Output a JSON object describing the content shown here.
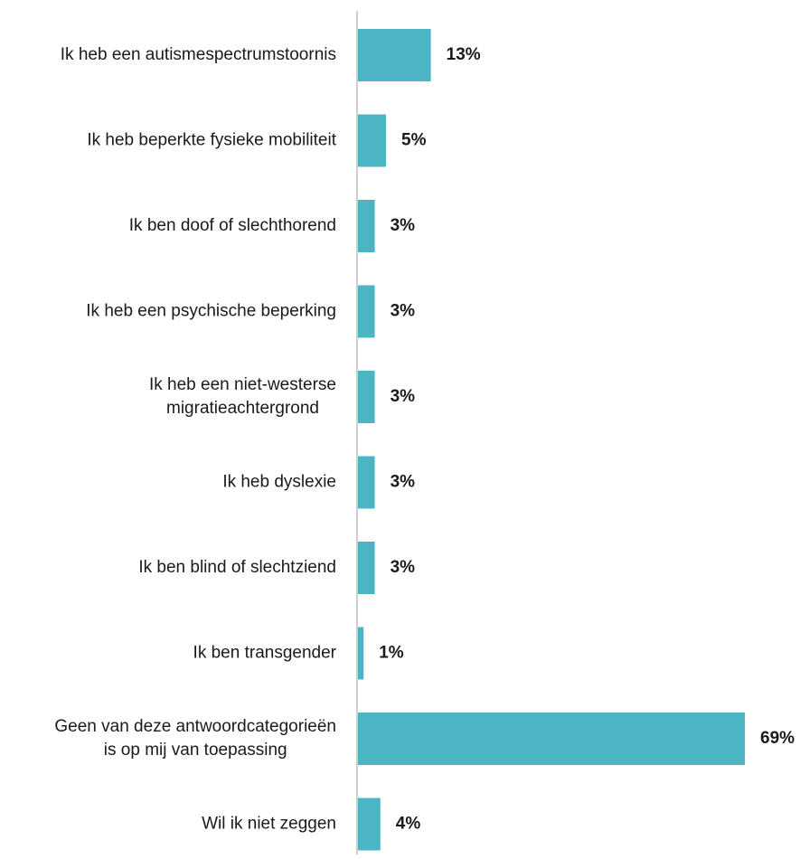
{
  "chart_data": {
    "type": "bar",
    "orientation": "horizontal",
    "categories": [
      [
        "Ik heb een autismespectrumstoornis"
      ],
      [
        "Ik heb beperkte fysieke mobiliteit"
      ],
      [
        "Ik ben doof of slechthorend"
      ],
      [
        "Ik heb een psychische beperking"
      ],
      [
        "Ik heb een niet-westerse",
        "migratieachtergrond"
      ],
      [
        "Ik heb dyslexie"
      ],
      [
        "Ik ben blind of slechtziend"
      ],
      [
        "Ik ben transgender"
      ],
      [
        "Geen van deze antwoordcategorieën",
        "is op mij van toepassing"
      ],
      [
        "Wil ik niet zeggen"
      ]
    ],
    "values": [
      13,
      5,
      3,
      3,
      3,
      3,
      3,
      1,
      69,
      4
    ],
    "value_labels": [
      "13%",
      "5%",
      "3%",
      "3%",
      "3%",
      "3%",
      "3%",
      "1%",
      "69%",
      "4%"
    ],
    "bar_color": "#4BB5C4",
    "axis_color": "#BFBFBF",
    "xlim": [
      0,
      69
    ],
    "title": "",
    "xlabel": "",
    "ylabel": "",
    "grid": false,
    "legend": "none"
  }
}
